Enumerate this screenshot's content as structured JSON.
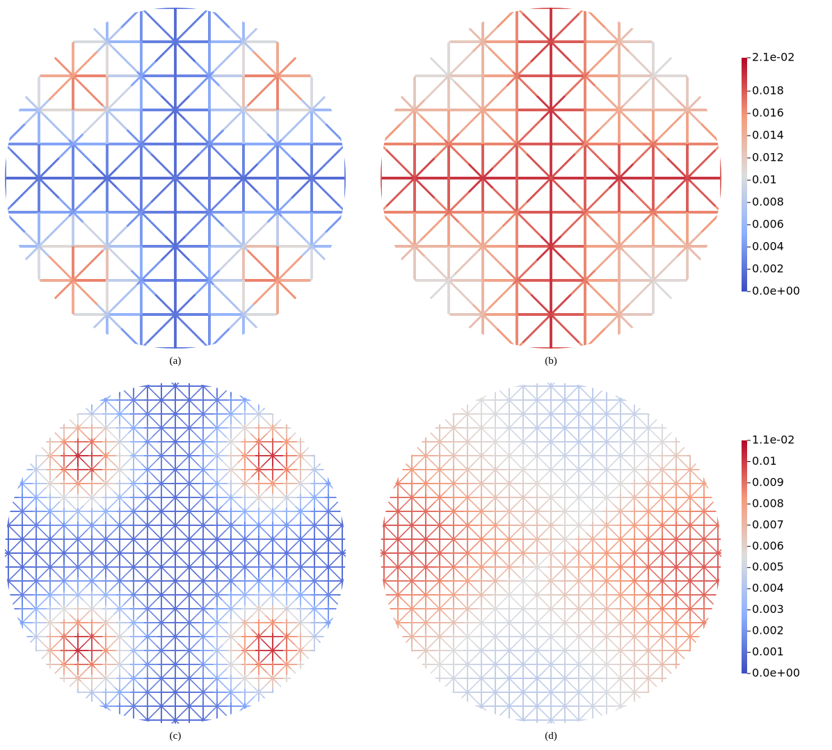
{
  "panels": [
    {
      "caption": "(a)"
    },
    {
      "caption": "(b)"
    },
    {
      "caption": "(c)"
    },
    {
      "caption": "(d)"
    }
  ],
  "colorbars": [
    {
      "lim": [
        0,
        0.021
      ],
      "ticks": [
        {
          "value": 0.021,
          "label": "2.1e-02"
        },
        0.018,
        0.016,
        0.014,
        0.012,
        0.01,
        0.008,
        0.006,
        0.004,
        0.002,
        {
          "value": 0,
          "label": "0.0e+00"
        }
      ]
    },
    {
      "lim": [
        0,
        0.011
      ],
      "ticks": [
        {
          "value": 0.011,
          "label": "1.1e-02"
        },
        0.01,
        0.009,
        0.008,
        0.007,
        0.006,
        0.005,
        0.004,
        0.003,
        0.002,
        0.001,
        {
          "value": 0,
          "label": "0.0e+00"
        }
      ]
    }
  ]
}
